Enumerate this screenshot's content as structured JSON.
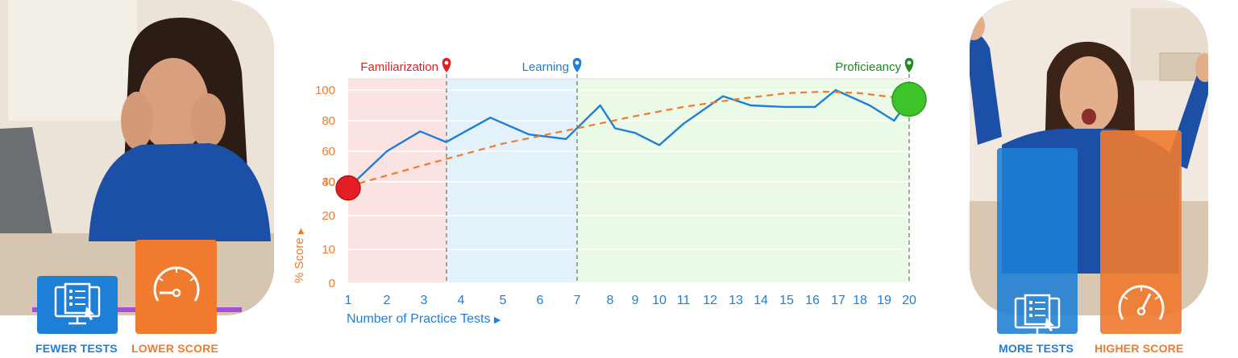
{
  "left_panel": {
    "tiles": [
      {
        "caption": "FEWER TESTS",
        "icon": "test-sheet-icon",
        "color": "#1e7fd6"
      },
      {
        "caption": "LOWER SCORE",
        "icon": "speedometer-low-icon",
        "color": "#f07a2e"
      }
    ]
  },
  "right_panel": {
    "tiles": [
      {
        "caption": "MORE TESTS",
        "icon": "test-sheet-icon",
        "color": "#1e7fd6"
      },
      {
        "caption": "HIGHER SCORE",
        "icon": "speedometer-high-icon",
        "color": "#f07a2e"
      }
    ]
  },
  "chart_data": {
    "type": "line",
    "xlabel": "Number of Practice Tests",
    "ylabel": "% Score",
    "x": [
      1,
      2,
      3,
      4,
      5,
      6,
      7,
      8,
      9,
      10,
      11,
      12,
      13,
      14,
      15,
      16,
      17,
      18,
      19,
      20
    ],
    "x_ticks": [
      "1",
      "2",
      "3",
      "4",
      "5",
      "6",
      "7",
      "8",
      "9",
      "10",
      "11",
      "12",
      "13",
      "14",
      "15",
      "16",
      "17",
      "18",
      "19",
      "20"
    ],
    "y_ticks": [
      "0",
      "10",
      "20",
      "30",
      "40",
      "60",
      "80",
      "100"
    ],
    "grid": true,
    "series": [
      {
        "points": [
          [
            1,
            36
          ],
          [
            2,
            60
          ],
          [
            2.9,
            73
          ],
          [
            3.6,
            66
          ],
          [
            4.7,
            82
          ],
          [
            5.7,
            71
          ],
          [
            6.7,
            68
          ],
          [
            7.7,
            90
          ],
          [
            8.2,
            75
          ],
          [
            9,
            72
          ],
          [
            10,
            64
          ],
          [
            11,
            78
          ],
          [
            12.5,
            96
          ],
          [
            13.6,
            90
          ],
          [
            14.9,
            89
          ],
          [
            16.1,
            89
          ],
          [
            16.9,
            100
          ],
          [
            18.4,
            90
          ],
          [
            19.4,
            80
          ],
          [
            20,
            94
          ]
        ],
        "color": "#1e7fd6",
        "style": "solid"
      },
      {
        "points": [
          [
            1,
            37
          ],
          [
            3,
            51
          ],
          [
            5,
            65
          ],
          [
            7,
            75
          ],
          [
            9,
            83
          ],
          [
            11,
            89
          ],
          [
            13,
            94
          ],
          [
            15,
            98
          ],
          [
            16.5,
            99
          ],
          [
            18,
            98
          ],
          [
            20,
            94
          ]
        ],
        "color": "#f07a2e",
        "style": "dashed"
      }
    ],
    "markers": [
      {
        "x": 1,
        "y": 36,
        "color": "#e31e24"
      },
      {
        "x": 20,
        "y": 94,
        "color": "#3cc428"
      }
    ],
    "phases": [
      {
        "label": "Familiarization",
        "x_end": 4,
        "color": "#e31e24",
        "band": "#fbe3e1"
      },
      {
        "label": "Learning",
        "x_end": 7,
        "color": "#1e7fd6",
        "band": "#e3f1fb"
      },
      {
        "label": "Proficieancy",
        "x_end": 20,
        "color": "#1d8a1d",
        "band": "#ebfae6"
      }
    ]
  }
}
